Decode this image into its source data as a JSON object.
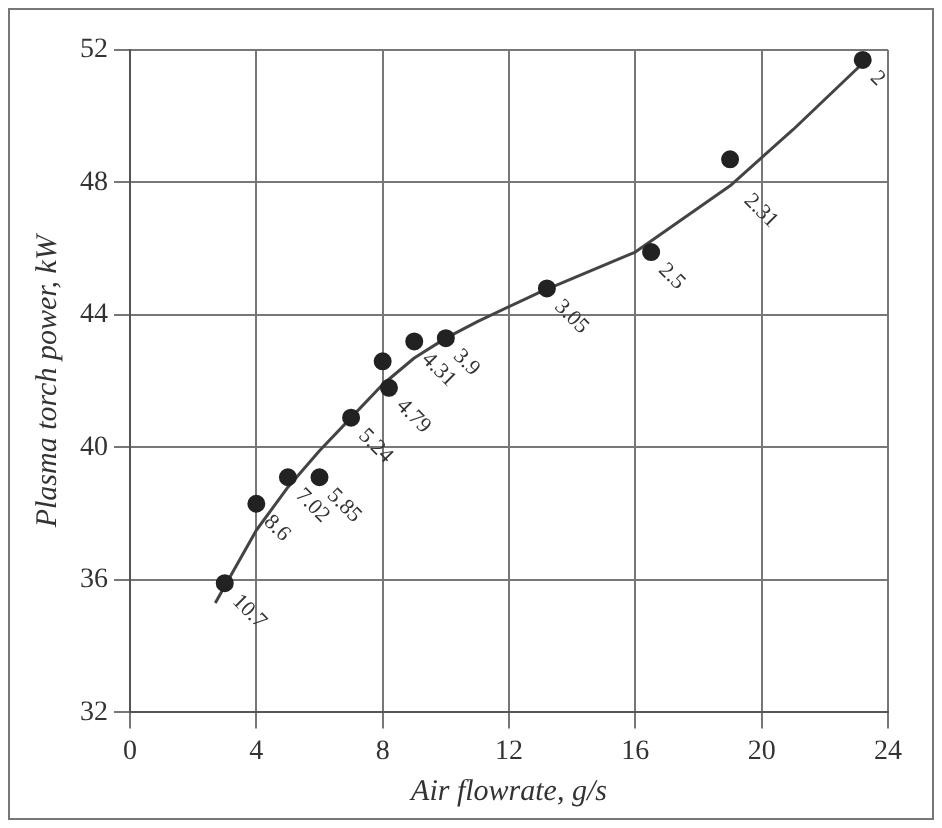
{
  "chart_data": {
    "type": "scatter",
    "xlabel": "Air flowrate, g/s",
    "ylabel": "Plasma torch power, kW",
    "xlim": [
      0,
      24
    ],
    "xticks": [
      0,
      4,
      8,
      12,
      16,
      20,
      24
    ],
    "ylim": [
      32,
      52
    ],
    "yticks": [
      32,
      36,
      40,
      44,
      48,
      52
    ],
    "grid": true,
    "marker": "circle",
    "series": [
      {
        "type": "scatter",
        "color": "#222222",
        "x": [
          3.0,
          4.0,
          5.0,
          6.0,
          7.0,
          8.0,
          8.2,
          9.0,
          10.0,
          13.2,
          16.5,
          19.0,
          23.2
        ],
        "values": [
          35.9,
          38.3,
          39.1,
          39.1,
          40.9,
          42.6,
          41.8,
          43.2,
          43.3,
          44.8,
          45.9,
          48.7,
          51.7
        ]
      },
      {
        "type": "line",
        "color": "#444444",
        "marker": "none",
        "x": [
          2.7,
          4,
          5,
          6,
          7,
          8,
          9,
          10,
          11,
          13,
          16,
          19,
          21,
          23.2
        ],
        "values": [
          35.3,
          37.5,
          38.8,
          39.9,
          40.9,
          41.9,
          42.7,
          43.3,
          43.8,
          44.7,
          45.9,
          47.9,
          49.6,
          51.6
        ]
      }
    ],
    "annotations": [
      {
        "text": "10.7",
        "x": 3.0,
        "y": 35.9
      },
      {
        "text": "8.6",
        "x": 4.0,
        "y": 38.3
      },
      {
        "text": "7.02",
        "x": 5.0,
        "y": 39.1
      },
      {
        "text": "5.85",
        "x": 6.0,
        "y": 39.1
      },
      {
        "text": "5.24",
        "x": 7.0,
        "y": 40.9
      },
      {
        "text": "4.79",
        "x": 8.2,
        "y": 41.8
      },
      {
        "text": "4.31",
        "x": 9.0,
        "y": 43.2
      },
      {
        "text": "3.9",
        "x": 10.0,
        "y": 43.3
      },
      {
        "text": "3.05",
        "x": 13.2,
        "y": 44.8
      },
      {
        "text": "2.5",
        "x": 16.5,
        "y": 45.9
      },
      {
        "text": "2.31",
        "x": 19.2,
        "y": 48.0
      },
      {
        "text": "2",
        "x": 23.2,
        "y": 51.7
      }
    ]
  }
}
